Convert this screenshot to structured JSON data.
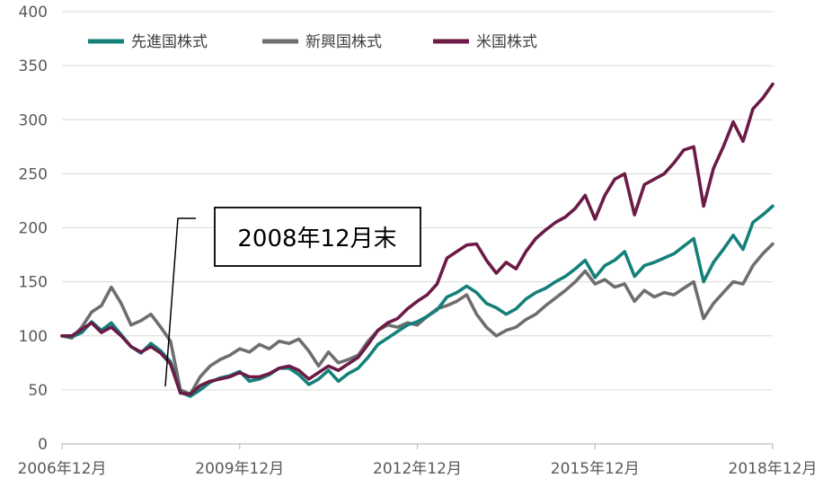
{
  "chart_data": {
    "type": "line",
    "title": "",
    "xlabel": "",
    "ylabel": "",
    "ylim": [
      0,
      400
    ],
    "y_ticks": [
      0,
      50,
      100,
      150,
      200,
      250,
      300,
      350,
      400
    ],
    "x_tick_labels": [
      "2006年12月",
      "2009年12月",
      "2012年12月",
      "2015年12月",
      "2018年12月"
    ],
    "grid": "horizontal",
    "legend_position": "top-left",
    "annotation": {
      "text": "2008年12月末",
      "target_month": 24
    },
    "series": [
      {
        "name": "先進国株式",
        "color": "#14807A",
        "points": [
          [
            0,
            100
          ],
          [
            2,
            99
          ],
          [
            4,
            103
          ],
          [
            6,
            113
          ],
          [
            8,
            105
          ],
          [
            10,
            112
          ],
          [
            12,
            101
          ],
          [
            14,
            90
          ],
          [
            16,
            84
          ],
          [
            18,
            93
          ],
          [
            20,
            86
          ],
          [
            22,
            76
          ],
          [
            24,
            48
          ],
          [
            26,
            44
          ],
          [
            28,
            50
          ],
          [
            30,
            57
          ],
          [
            32,
            61
          ],
          [
            34,
            63
          ],
          [
            36,
            67
          ],
          [
            38,
            58
          ],
          [
            40,
            60
          ],
          [
            42,
            64
          ],
          [
            44,
            70
          ],
          [
            46,
            70
          ],
          [
            48,
            64
          ],
          [
            50,
            55
          ],
          [
            52,
            60
          ],
          [
            54,
            68
          ],
          [
            56,
            58
          ],
          [
            58,
            65
          ],
          [
            60,
            70
          ],
          [
            62,
            80
          ],
          [
            64,
            92
          ],
          [
            66,
            98
          ],
          [
            68,
            104
          ],
          [
            70,
            110
          ],
          [
            72,
            113
          ],
          [
            74,
            118
          ],
          [
            76,
            124
          ],
          [
            78,
            136
          ],
          [
            80,
            140
          ],
          [
            82,
            146
          ],
          [
            84,
            140
          ],
          [
            86,
            130
          ],
          [
            88,
            126
          ],
          [
            90,
            120
          ],
          [
            92,
            125
          ],
          [
            94,
            134
          ],
          [
            96,
            140
          ],
          [
            98,
            144
          ],
          [
            100,
            150
          ],
          [
            102,
            155
          ],
          [
            104,
            162
          ],
          [
            106,
            170
          ],
          [
            108,
            154
          ],
          [
            110,
            165
          ],
          [
            112,
            170
          ],
          [
            114,
            178
          ],
          [
            116,
            155
          ],
          [
            118,
            165
          ],
          [
            120,
            168
          ],
          [
            122,
            172
          ],
          [
            124,
            176
          ],
          [
            126,
            183
          ],
          [
            128,
            190
          ],
          [
            130,
            150
          ],
          [
            132,
            168
          ],
          [
            134,
            180
          ],
          [
            136,
            193
          ],
          [
            138,
            180
          ],
          [
            140,
            205
          ],
          [
            142,
            212
          ],
          [
            144,
            220
          ]
        ]
      },
      {
        "name": "新興国株式",
        "color": "#6E6E6E",
        "points": [
          [
            0,
            100
          ],
          [
            2,
            98
          ],
          [
            4,
            108
          ],
          [
            6,
            122
          ],
          [
            8,
            128
          ],
          [
            10,
            145
          ],
          [
            12,
            130
          ],
          [
            14,
            110
          ],
          [
            16,
            114
          ],
          [
            18,
            120
          ],
          [
            20,
            108
          ],
          [
            22,
            95
          ],
          [
            24,
            50
          ],
          [
            26,
            46
          ],
          [
            28,
            62
          ],
          [
            30,
            72
          ],
          [
            32,
            78
          ],
          [
            34,
            82
          ],
          [
            36,
            88
          ],
          [
            38,
            85
          ],
          [
            40,
            92
          ],
          [
            42,
            88
          ],
          [
            44,
            95
          ],
          [
            46,
            93
          ],
          [
            48,
            97
          ],
          [
            50,
            86
          ],
          [
            52,
            72
          ],
          [
            54,
            85
          ],
          [
            56,
            75
          ],
          [
            58,
            78
          ],
          [
            60,
            82
          ],
          [
            62,
            95
          ],
          [
            64,
            105
          ],
          [
            66,
            110
          ],
          [
            68,
            108
          ],
          [
            70,
            112
          ],
          [
            72,
            110
          ],
          [
            74,
            118
          ],
          [
            76,
            125
          ],
          [
            78,
            128
          ],
          [
            80,
            132
          ],
          [
            82,
            138
          ],
          [
            84,
            120
          ],
          [
            86,
            108
          ],
          [
            88,
            100
          ],
          [
            90,
            105
          ],
          [
            92,
            108
          ],
          [
            94,
            115
          ],
          [
            96,
            120
          ],
          [
            98,
            128
          ],
          [
            100,
            135
          ],
          [
            102,
            142
          ],
          [
            104,
            150
          ],
          [
            106,
            160
          ],
          [
            108,
            148
          ],
          [
            110,
            152
          ],
          [
            112,
            145
          ],
          [
            114,
            148
          ],
          [
            116,
            132
          ],
          [
            118,
            142
          ],
          [
            120,
            136
          ],
          [
            122,
            140
          ],
          [
            124,
            138
          ],
          [
            126,
            144
          ],
          [
            128,
            150
          ],
          [
            130,
            116
          ],
          [
            132,
            130
          ],
          [
            134,
            140
          ],
          [
            136,
            150
          ],
          [
            138,
            148
          ],
          [
            140,
            165
          ],
          [
            142,
            176
          ],
          [
            144,
            185
          ]
        ]
      },
      {
        "name": "米国株式",
        "color": "#6B1B45",
        "points": [
          [
            0,
            100
          ],
          [
            2,
            100
          ],
          [
            4,
            106
          ],
          [
            6,
            112
          ],
          [
            8,
            103
          ],
          [
            10,
            108
          ],
          [
            12,
            100
          ],
          [
            14,
            90
          ],
          [
            16,
            85
          ],
          [
            18,
            90
          ],
          [
            20,
            84
          ],
          [
            22,
            74
          ],
          [
            24,
            47
          ],
          [
            26,
            46
          ],
          [
            28,
            54
          ],
          [
            30,
            58
          ],
          [
            32,
            60
          ],
          [
            34,
            62
          ],
          [
            36,
            66
          ],
          [
            38,
            62
          ],
          [
            40,
            62
          ],
          [
            42,
            65
          ],
          [
            44,
            70
          ],
          [
            46,
            72
          ],
          [
            48,
            68
          ],
          [
            50,
            60
          ],
          [
            52,
            66
          ],
          [
            54,
            72
          ],
          [
            56,
            68
          ],
          [
            58,
            74
          ],
          [
            60,
            80
          ],
          [
            62,
            92
          ],
          [
            64,
            105
          ],
          [
            66,
            112
          ],
          [
            68,
            116
          ],
          [
            70,
            125
          ],
          [
            72,
            132
          ],
          [
            74,
            138
          ],
          [
            76,
            148
          ],
          [
            78,
            172
          ],
          [
            80,
            178
          ],
          [
            82,
            184
          ],
          [
            84,
            185
          ],
          [
            86,
            170
          ],
          [
            88,
            158
          ],
          [
            90,
            168
          ],
          [
            92,
            162
          ],
          [
            94,
            178
          ],
          [
            96,
            190
          ],
          [
            98,
            198
          ],
          [
            100,
            205
          ],
          [
            102,
            210
          ],
          [
            104,
            218
          ],
          [
            106,
            230
          ],
          [
            108,
            208
          ],
          [
            110,
            230
          ],
          [
            112,
            245
          ],
          [
            114,
            250
          ],
          [
            116,
            212
          ],
          [
            118,
            240
          ],
          [
            120,
            245
          ],
          [
            122,
            250
          ],
          [
            124,
            260
          ],
          [
            126,
            272
          ],
          [
            128,
            275
          ],
          [
            130,
            220
          ],
          [
            132,
            255
          ],
          [
            134,
            275
          ],
          [
            136,
            298
          ],
          [
            138,
            280
          ],
          [
            140,
            310
          ],
          [
            142,
            320
          ],
          [
            144,
            333
          ]
        ]
      }
    ]
  }
}
